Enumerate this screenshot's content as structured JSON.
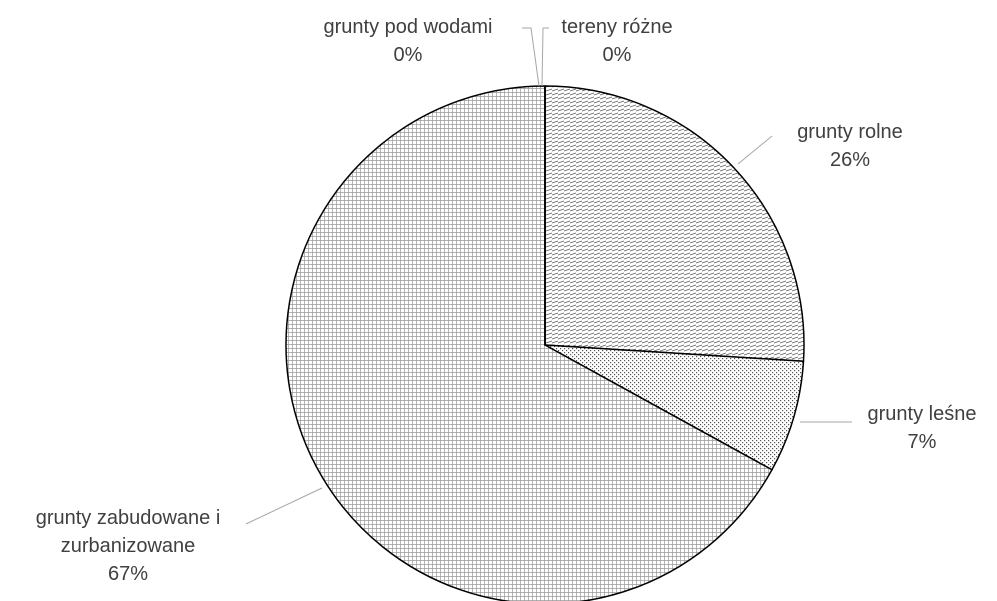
{
  "chart_data": {
    "type": "pie",
    "categories": [
      "grunty rolne",
      "grunty leśne",
      "grunty zabudowane i zurbanizowane",
      "grunty pod wodami",
      "tereny różne"
    ],
    "values": [
      26,
      7,
      67,
      0,
      0
    ],
    "value_labels": [
      "26%",
      "7%",
      "67%",
      "0%",
      "0%"
    ]
  }
}
